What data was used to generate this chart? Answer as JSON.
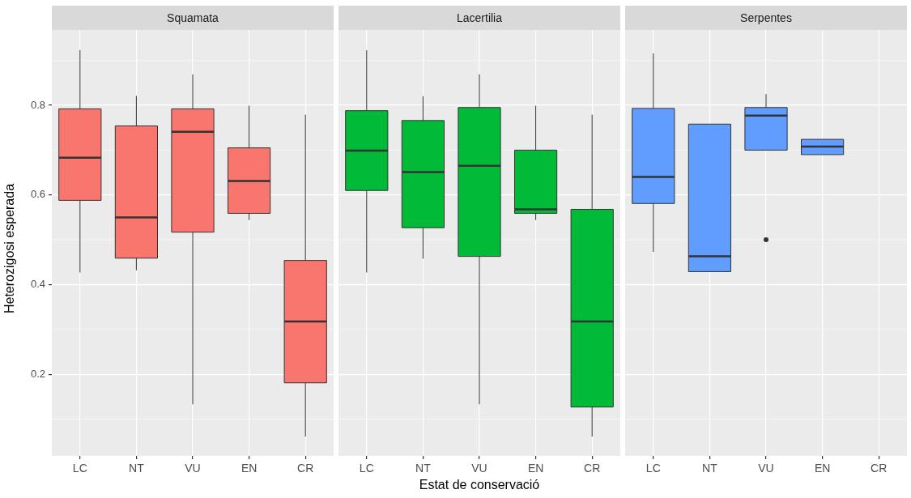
{
  "chart_data": [
    {
      "type": "box",
      "title": "Squamata",
      "ylabel": "Heterozigosi esperada",
      "categories": [
        "LC",
        "NT",
        "VU",
        "EN",
        "CR"
      ],
      "color": "#f8766d",
      "ylim": [
        0.018,
        0.968
      ],
      "yticks": [
        0.2,
        0.4,
        0.6,
        0.8
      ],
      "grid": true,
      "boxes": [
        {
          "low": 0.427,
          "q1": 0.588,
          "median": 0.683,
          "q3": 0.792,
          "high": 0.923
        },
        {
          "low": 0.432,
          "q1": 0.459,
          "median": 0.55,
          "q3": 0.754,
          "high": 0.821
        },
        {
          "low": 0.133,
          "q1": 0.517,
          "median": 0.741,
          "q3": 0.792,
          "high": 0.869
        },
        {
          "low": 0.544,
          "q1": 0.559,
          "median": 0.631,
          "q3": 0.705,
          "high": 0.799
        },
        {
          "low": 0.061,
          "q1": 0.181,
          "median": 0.318,
          "q3": 0.454,
          "high": 0.779
        }
      ]
    },
    {
      "type": "box",
      "title": "Lacertilia",
      "xlabel": "Estat de conservació",
      "categories": [
        "LC",
        "NT",
        "VU",
        "EN",
        "CR"
      ],
      "color": "#00ba38",
      "ylim": [
        0.018,
        0.968
      ],
      "yticks": [
        0.2,
        0.4,
        0.6,
        0.8
      ],
      "grid": true,
      "tick_labels": "x",
      "boxes": [
        {
          "low": 0.427,
          "q1": 0.61,
          "median": 0.699,
          "q3": 0.788,
          "high": 0.923
        },
        {
          "low": 0.458,
          "q1": 0.527,
          "median": 0.651,
          "q3": 0.766,
          "high": 0.82
        },
        {
          "low": 0.133,
          "q1": 0.463,
          "median": 0.665,
          "q3": 0.795,
          "high": 0.869
        },
        {
          "low": 0.544,
          "q1": 0.559,
          "median": 0.568,
          "q3": 0.7,
          "high": 0.799
        },
        {
          "low": 0.061,
          "q1": 0.127,
          "median": 0.318,
          "q3": 0.568,
          "high": 0.779
        }
      ]
    },
    {
      "type": "box",
      "title": "Serpentes",
      "categories": [
        "LC",
        "NT",
        "VU",
        "EN",
        "CR"
      ],
      "color": "#619cff",
      "ylim": [
        0.018,
        0.968
      ],
      "yticks": [
        0.2,
        0.4,
        0.6,
        0.8
      ],
      "grid": true,
      "tick_labels": "x",
      "boxes": [
        {
          "low": 0.473,
          "q1": 0.581,
          "median": 0.64,
          "q3": 0.793,
          "high": 0.916
        },
        {
          "low": 0.429,
          "q1": 0.429,
          "median": 0.463,
          "q3": 0.758,
          "high": 0.758
        },
        {
          "low": 0.7,
          "q1": 0.7,
          "median": 0.777,
          "q3": 0.795,
          "high": 0.825,
          "outliers": [
            0.5
          ]
        },
        {
          "low": 0.69,
          "q1": 0.69,
          "median": 0.708,
          "q3": 0.724,
          "high": 0.724
        },
        null
      ]
    }
  ]
}
